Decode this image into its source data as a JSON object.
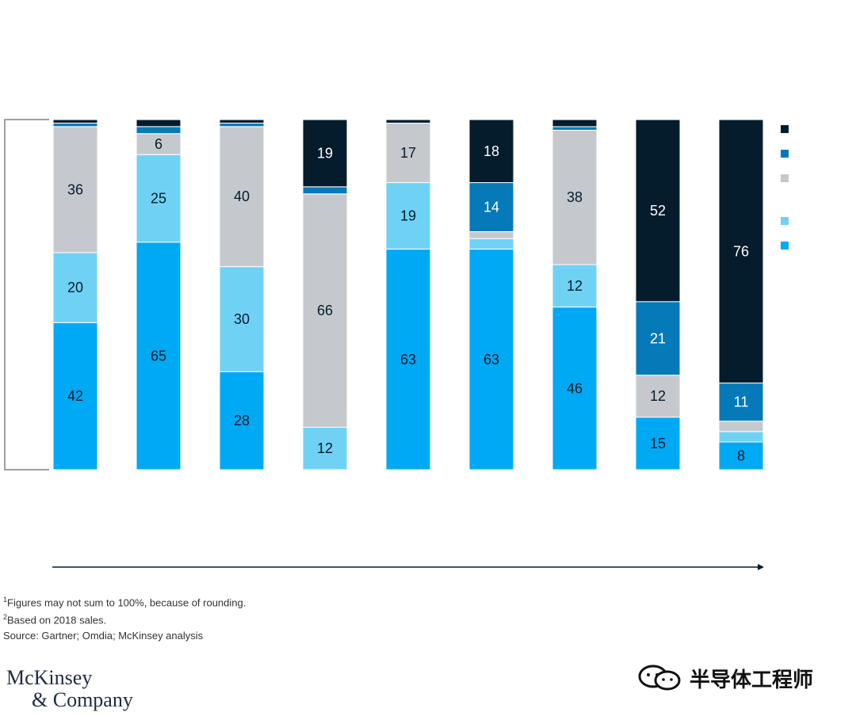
{
  "chart_data": {
    "type": "bar",
    "stacked": true,
    "normalized_to": 100,
    "title": "",
    "xlabel": "",
    "ylabel": "",
    "ylim": [
      0,
      100
    ],
    "categories": [
      "",
      "",
      "",
      "",
      "",
      "",
      "",
      "",
      ""
    ],
    "series": [
      {
        "color": "#00a9f4",
        "values": [
          42,
          65,
          28,
          0,
          63,
          63,
          46,
          15,
          8
        ]
      },
      {
        "color": "#6fd2f5",
        "values": [
          20,
          25,
          30,
          12,
          19,
          3,
          12,
          0,
          3
        ]
      },
      {
        "color": "#c5c9ce",
        "values": [
          36,
          6,
          40,
          66,
          17,
          2,
          38,
          12,
          3
        ]
      },
      {
        "color": "#0679b8",
        "values": [
          1,
          2,
          1,
          2,
          0,
          14,
          1,
          21,
          11
        ]
      },
      {
        "color": "#051c2c",
        "values": [
          1,
          2,
          1,
          19,
          1,
          18,
          2,
          52,
          76
        ]
      }
    ],
    "data_labels": [
      [
        42,
        20,
        36,
        null,
        null
      ],
      [
        65,
        25,
        6,
        null,
        null
      ],
      [
        28,
        30,
        40,
        null,
        null
      ],
      [
        null,
        12,
        66,
        null,
        19
      ],
      [
        63,
        19,
        17,
        null,
        null
      ],
      [
        63,
        null,
        null,
        14,
        18
      ],
      [
        46,
        12,
        38,
        null,
        null
      ],
      [
        15,
        null,
        12,
        21,
        52
      ],
      [
        8,
        null,
        null,
        11,
        76
      ]
    ],
    "legend_position": "right",
    "grid": false,
    "x_arrow": true
  },
  "footnotes": {
    "note1_marker": "1",
    "note1": "Figures may not sum to 100%, because of rounding.",
    "note2_marker": "2",
    "note2": "Based on 2018 sales.",
    "source": " Source: Gartner; Omdia; McKinsey analysis"
  },
  "logo": {
    "line1": "McKinsey",
    "line2": "& Company"
  },
  "watermark": {
    "text": "半导体工程师"
  }
}
